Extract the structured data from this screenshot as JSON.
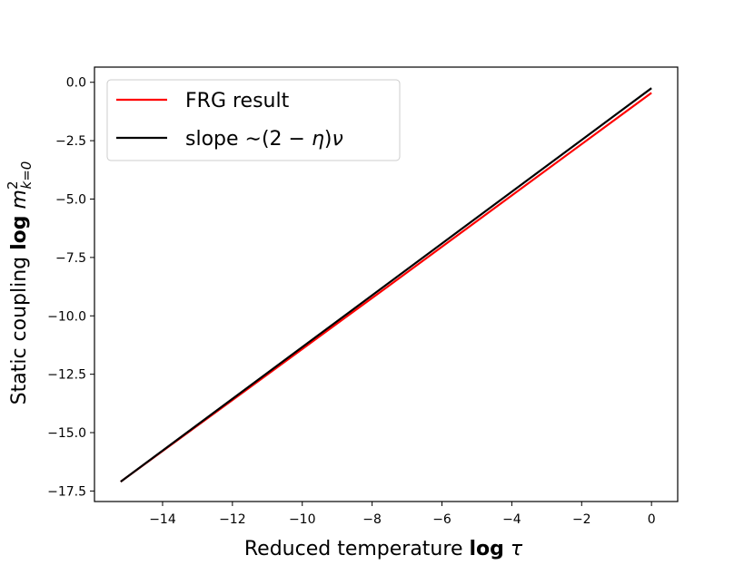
{
  "chart_data": {
    "type": "line",
    "xlabel": "Reduced temperature log τ",
    "xlabel_parts": {
      "pre": "Reduced temperature ",
      "bold": "log",
      "post": " τ"
    },
    "ylabel": "Static coupling log m²_{k=0}",
    "ylabel_parts": {
      "pre": "Static coupling ",
      "bold": "log",
      "var": "m",
      "sup": "2",
      "sub": "k=0"
    },
    "xlim": [
      -15.95,
      0.75
    ],
    "ylim": [
      -17.95,
      0.65
    ],
    "x_ticks": [
      -14,
      -12,
      -10,
      -8,
      -6,
      -4,
      -2,
      0
    ],
    "x_tick_labels": [
      "−14",
      "−12",
      "−10",
      "−8",
      "−6",
      "−4",
      "−2",
      "0"
    ],
    "y_ticks": [
      0,
      -2.5,
      -5,
      -7.5,
      -10,
      -12.5,
      -15,
      -17.5
    ],
    "y_tick_labels": [
      "0.0",
      "−2.5",
      "−5.0",
      "−7.5",
      "−10.0",
      "−12.5",
      "−15.0",
      "−17.5"
    ],
    "grid": false,
    "legend_position": "top-left",
    "series": [
      {
        "name": "FRG result",
        "color": "#ff0000",
        "x": [
          -15.2,
          -7.6,
          0.0
        ],
        "y": [
          -17.1,
          -8.8,
          -0.45
        ]
      },
      {
        "name": "slope ∼(2 − η)ν",
        "color": "#000000",
        "x": [
          -15.2,
          0.0
        ],
        "y": [
          -17.1,
          -0.25
        ]
      }
    ],
    "legend": {
      "entries": [
        {
          "label": "FRG result",
          "color": "#ff0000"
        },
        {
          "label_pre": "slope   ∼(2 − ",
          "label_eta": "η",
          "label_mid": ")",
          "label_nu": "ν",
          "color": "#000000"
        }
      ]
    }
  }
}
